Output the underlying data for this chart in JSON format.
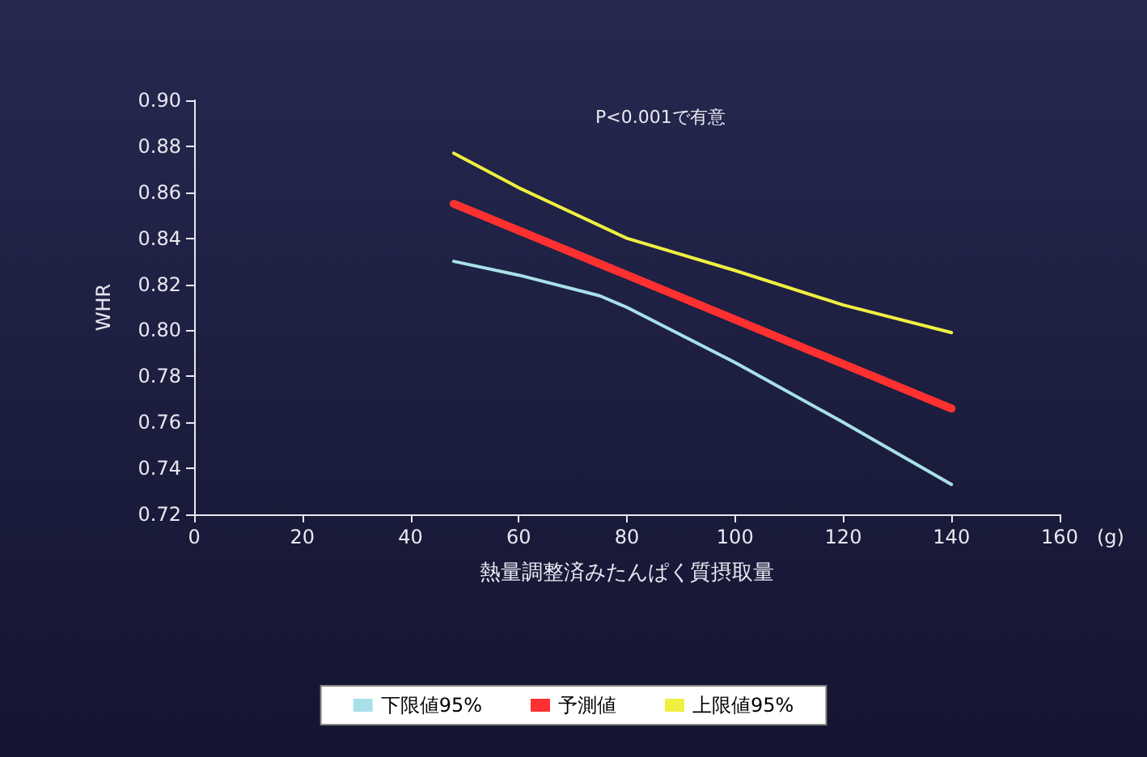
{
  "chart_data": {
    "type": "line",
    "ylabel": "WHR",
    "xlabel": "熱量調整済みたんぱく質摂取量",
    "annotations": [
      "P<0.001で有意",
      "(g)"
    ],
    "xlim": [
      0,
      160
    ],
    "xticks": [
      0,
      20,
      40,
      60,
      80,
      100,
      120,
      140,
      160
    ],
    "ylim": [
      0.72,
      0.9
    ],
    "yticks": [
      0.72,
      0.74,
      0.76,
      0.78,
      {
        "value": 0.8,
        "label": "0.80"
      },
      0.82,
      0.84,
      0.86,
      0.88,
      {
        "value": 0.9,
        "label": "0.90"
      }
    ],
    "grid": false,
    "legend": "bottom",
    "marker": "none",
    "line_style": "solid",
    "series": [
      {
        "name": "下限値95%",
        "color": "#a8e0e8",
        "x": [
          48,
          60,
          75,
          80,
          100,
          120,
          140
        ],
        "values": [
          0.83,
          0.824,
          0.815,
          0.81,
          0.786,
          0.76,
          0.733
        ]
      },
      {
        "name": "予測値",
        "color": "#ff3030",
        "x": [
          48,
          140
        ],
        "values": [
          0.855,
          0.766
        ]
      },
      {
        "name": "上限値95%",
        "color": "#f0f040",
        "x": [
          48,
          60,
          80,
          100,
          120,
          140
        ],
        "values": [
          0.877,
          0.862,
          0.84,
          0.826,
          0.811,
          0.799
        ]
      }
    ]
  }
}
